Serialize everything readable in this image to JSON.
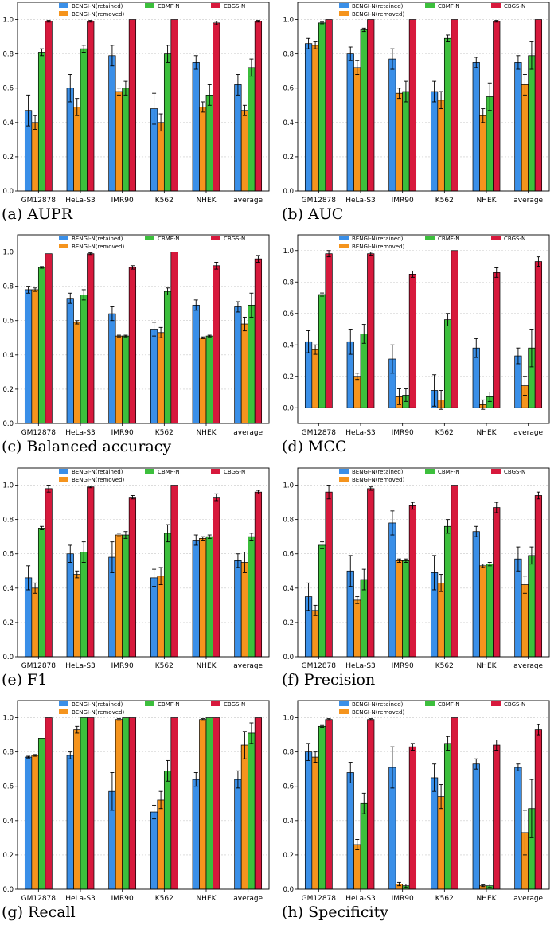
{
  "colors": {
    "BENGI-N(retained)": "#3a8fe8",
    "BENGI-N(removed)": "#f5941d",
    "CBMF-N": "#3cbf3c",
    "CBGS-N": "#d7193c"
  },
  "legend_labels": [
    "BENGI-N(retained)",
    "BENGI-N(removed)",
    "CBMF-N",
    "CBGS-N"
  ],
  "chart_data": [
    {
      "type": "bar",
      "panel": "(a)",
      "title": "AUPR",
      "caption": "(a) AUPR",
      "categories": [
        "GM12878",
        "HeLa-S3",
        "IMR90",
        "K562",
        "NHEK",
        "average"
      ],
      "ylim": [
        0,
        1.1
      ],
      "yticks": [
        "0.0",
        "0.2",
        "0.4",
        "0.6",
        "0.8",
        "1.0"
      ],
      "series": [
        {
          "name": "BENGI-N(retained)",
          "values": [
            0.47,
            0.6,
            0.79,
            0.48,
            0.75,
            0.62
          ],
          "errors": [
            0.09,
            0.08,
            0.06,
            0.09,
            0.04,
            0.06
          ]
        },
        {
          "name": "BENGI-N(removed)",
          "values": [
            0.4,
            0.49,
            0.58,
            0.4,
            0.49,
            0.47
          ],
          "errors": [
            0.04,
            0.05,
            0.02,
            0.05,
            0.03,
            0.03
          ]
        },
        {
          "name": "CBMF-N",
          "values": [
            0.81,
            0.83,
            0.6,
            0.8,
            0.56,
            0.72
          ],
          "errors": [
            0.02,
            0.02,
            0.04,
            0.05,
            0.06,
            0.05
          ]
        },
        {
          "name": "CBGS-N",
          "values": [
            0.99,
            0.99,
            1.0,
            1.0,
            0.98,
            0.99
          ],
          "errors": [
            0.005,
            0.005,
            0.0,
            0.0,
            0.01,
            0.005
          ]
        }
      ]
    },
    {
      "type": "bar",
      "panel": "(b)",
      "title": "AUC",
      "caption": "(b) AUC",
      "categories": [
        "GM12878",
        "HeLa-S3",
        "IMR90",
        "K562",
        "NHEK",
        "average"
      ],
      "ylim": [
        0,
        1.1
      ],
      "yticks": [
        "0.0",
        "0.2",
        "0.4",
        "0.6",
        "0.8",
        "1.0"
      ],
      "series": [
        {
          "name": "BENGI-N(retained)",
          "values": [
            0.86,
            0.8,
            0.77,
            0.58,
            0.75,
            0.75
          ],
          "errors": [
            0.03,
            0.04,
            0.06,
            0.06,
            0.03,
            0.04
          ]
        },
        {
          "name": "BENGI-N(removed)",
          "values": [
            0.85,
            0.72,
            0.57,
            0.53,
            0.44,
            0.62
          ],
          "errors": [
            0.02,
            0.04,
            0.03,
            0.05,
            0.04,
            0.06
          ]
        },
        {
          "name": "CBMF-N",
          "values": [
            0.98,
            0.94,
            0.58,
            0.89,
            0.55,
            0.79
          ],
          "errors": [
            0.005,
            0.01,
            0.06,
            0.02,
            0.08,
            0.08
          ]
        },
        {
          "name": "CBGS-N",
          "values": [
            1.0,
            1.0,
            1.0,
            1.0,
            0.99,
            1.0
          ],
          "errors": [
            0.0,
            0.0,
            0.0,
            0.0,
            0.005,
            0.0
          ]
        }
      ]
    },
    {
      "type": "bar",
      "panel": "(c)",
      "title": "Balanced accuracy",
      "caption": "(c) Balanced accuracy",
      "categories": [
        "GM12878",
        "HeLa-S3",
        "IMR90",
        "K562",
        "NHEK",
        "average"
      ],
      "ylim": [
        0,
        1.1
      ],
      "yticks": [
        "0.0",
        "0.2",
        "0.4",
        "0.6",
        "0.8",
        "1.0"
      ],
      "series": [
        {
          "name": "BENGI-N(retained)",
          "values": [
            0.78,
            0.73,
            0.64,
            0.55,
            0.69,
            0.68
          ],
          "errors": [
            0.02,
            0.03,
            0.04,
            0.04,
            0.03,
            0.03
          ]
        },
        {
          "name": "BENGI-N(removed)",
          "values": [
            0.78,
            0.59,
            0.51,
            0.53,
            0.5,
            0.58
          ],
          "errors": [
            0.01,
            0.01,
            0.005,
            0.03,
            0.005,
            0.04
          ]
        },
        {
          "name": "CBMF-N",
          "values": [
            0.91,
            0.75,
            0.51,
            0.77,
            0.51,
            0.69
          ],
          "errors": [
            0.005,
            0.03,
            0.005,
            0.02,
            0.005,
            0.07
          ]
        },
        {
          "name": "CBGS-N",
          "values": [
            0.99,
            0.99,
            0.91,
            1.0,
            0.92,
            0.96
          ],
          "errors": [
            0.0,
            0.005,
            0.01,
            0.0,
            0.02,
            0.02
          ]
        }
      ]
    },
    {
      "type": "bar",
      "panel": "(d)",
      "title": "MCC",
      "caption": "(d) MCC",
      "categories": [
        "GM12878",
        "HeLa-S3",
        "IMR90",
        "K562",
        "NHEK",
        "average"
      ],
      "ylim": [
        -0.1,
        1.1
      ],
      "yticks": [
        "0.0",
        "0.2",
        "0.4",
        "0.6",
        "0.8",
        "1.0"
      ],
      "series": [
        {
          "name": "BENGI-N(retained)",
          "values": [
            0.42,
            0.42,
            0.31,
            0.11,
            0.38,
            0.33
          ],
          "errors": [
            0.07,
            0.08,
            0.09,
            0.1,
            0.06,
            0.05
          ]
        },
        {
          "name": "BENGI-N(removed)",
          "values": [
            0.37,
            0.2,
            0.07,
            0.05,
            0.02,
            0.14
          ],
          "errors": [
            0.03,
            0.02,
            0.05,
            0.06,
            0.03,
            0.06
          ]
        },
        {
          "name": "CBMF-N",
          "values": [
            0.72,
            0.47,
            0.08,
            0.56,
            0.07,
            0.38
          ],
          "errors": [
            0.01,
            0.06,
            0.04,
            0.04,
            0.03,
            0.12
          ]
        },
        {
          "name": "CBGS-N",
          "values": [
            0.98,
            0.98,
            0.85,
            1.0,
            0.86,
            0.93
          ],
          "errors": [
            0.02,
            0.01,
            0.02,
            0.0,
            0.03,
            0.03
          ]
        }
      ]
    },
    {
      "type": "bar",
      "panel": "(e)",
      "title": "F1",
      "caption": "(e) F1",
      "categories": [
        "GM12878",
        "HeLa-S3",
        "IMR90",
        "K562",
        "NHEK",
        "average"
      ],
      "ylim": [
        0,
        1.1
      ],
      "yticks": [
        "0.0",
        "0.2",
        "0.4",
        "0.6",
        "0.8",
        "1.0"
      ],
      "series": [
        {
          "name": "BENGI-N(retained)",
          "values": [
            0.46,
            0.6,
            0.58,
            0.46,
            0.68,
            0.56
          ],
          "errors": [
            0.07,
            0.05,
            0.09,
            0.05,
            0.03,
            0.04
          ]
        },
        {
          "name": "BENGI-N(removed)",
          "values": [
            0.4,
            0.48,
            0.71,
            0.47,
            0.69,
            0.55
          ],
          "errors": [
            0.03,
            0.02,
            0.01,
            0.05,
            0.01,
            0.06
          ]
        },
        {
          "name": "CBMF-N",
          "values": [
            0.75,
            0.61,
            0.71,
            0.72,
            0.7,
            0.7
          ],
          "errors": [
            0.01,
            0.06,
            0.02,
            0.05,
            0.01,
            0.02
          ]
        },
        {
          "name": "CBGS-N",
          "values": [
            0.98,
            0.99,
            0.93,
            1.0,
            0.93,
            0.96
          ],
          "errors": [
            0.02,
            0.005,
            0.01,
            0.0,
            0.02,
            0.01
          ]
        }
      ]
    },
    {
      "type": "bar",
      "panel": "(f)",
      "title": "Precision",
      "caption": "(f) Precision",
      "categories": [
        "GM12878",
        "HeLa-S3",
        "IMR90",
        "K562",
        "NHEK",
        "average"
      ],
      "ylim": [
        0,
        1.1
      ],
      "yticks": [
        "0.0",
        "0.2",
        "0.4",
        "0.6",
        "0.8",
        "1.0"
      ],
      "series": [
        {
          "name": "BENGI-N(retained)",
          "values": [
            0.35,
            0.5,
            0.78,
            0.49,
            0.73,
            0.57
          ],
          "errors": [
            0.08,
            0.09,
            0.07,
            0.1,
            0.03,
            0.07
          ]
        },
        {
          "name": "BENGI-N(removed)",
          "values": [
            0.27,
            0.33,
            0.56,
            0.43,
            0.53,
            0.42
          ],
          "errors": [
            0.03,
            0.02,
            0.01,
            0.05,
            0.01,
            0.05
          ]
        },
        {
          "name": "CBMF-N",
          "values": [
            0.65,
            0.45,
            0.56,
            0.76,
            0.54,
            0.59
          ],
          "errors": [
            0.02,
            0.06,
            0.01,
            0.04,
            0.01,
            0.05
          ]
        },
        {
          "name": "CBGS-N",
          "values": [
            0.96,
            0.98,
            0.88,
            1.0,
            0.87,
            0.94
          ],
          "errors": [
            0.04,
            0.01,
            0.02,
            0.0,
            0.03,
            0.02
          ]
        }
      ]
    },
    {
      "type": "bar",
      "panel": "(g)",
      "title": "Recall",
      "caption": "(g) Recall",
      "categories": [
        "GM12878",
        "HeLa-S3",
        "IMR90",
        "K562",
        "NHEK",
        "average"
      ],
      "ylim": [
        0,
        1.1
      ],
      "yticks": [
        "0.0",
        "0.2",
        "0.4",
        "0.6",
        "0.8",
        "1.0"
      ],
      "series": [
        {
          "name": "BENGI-N(retained)",
          "values": [
            0.77,
            0.78,
            0.57,
            0.45,
            0.64,
            0.64
          ],
          "errors": [
            0.005,
            0.02,
            0.11,
            0.04,
            0.04,
            0.05
          ]
        },
        {
          "name": "BENGI-N(removed)",
          "values": [
            0.78,
            0.93,
            0.99,
            0.52,
            0.99,
            0.84
          ],
          "errors": [
            0.005,
            0.02,
            0.005,
            0.05,
            0.005,
            0.08
          ]
        },
        {
          "name": "CBMF-N",
          "values": [
            0.88,
            1.0,
            1.0,
            0.69,
            1.0,
            0.91
          ],
          "errors": [
            0.0,
            0.0,
            0.0,
            0.06,
            0.0,
            0.06
          ]
        },
        {
          "name": "CBGS-N",
          "values": [
            1.0,
            1.0,
            1.0,
            1.0,
            1.0,
            1.0
          ],
          "errors": [
            0.0,
            0.0,
            0.0,
            0.0,
            0.0,
            0.0
          ]
        }
      ]
    },
    {
      "type": "bar",
      "panel": "(h)",
      "title": "Specificity",
      "caption": "(h) Specificity",
      "categories": [
        "GM12878",
        "HeLa-S3",
        "IMR90",
        "K562",
        "NHEK",
        "average"
      ],
      "ylim": [
        0,
        1.1
      ],
      "yticks": [
        "0.0",
        "0.2",
        "0.4",
        "0.6",
        "0.8",
        "1.0"
      ],
      "series": [
        {
          "name": "BENGI-N(retained)",
          "values": [
            0.8,
            0.68,
            0.71,
            0.65,
            0.73,
            0.71
          ],
          "errors": [
            0.05,
            0.06,
            0.12,
            0.08,
            0.03,
            0.02
          ]
        },
        {
          "name": "BENGI-N(removed)",
          "values": [
            0.77,
            0.26,
            0.03,
            0.54,
            0.02,
            0.33
          ],
          "errors": [
            0.03,
            0.03,
            0.01,
            0.07,
            0.005,
            0.13
          ]
        },
        {
          "name": "CBMF-N",
          "values": [
            0.95,
            0.5,
            0.02,
            0.85,
            0.02,
            0.47
          ],
          "errors": [
            0.005,
            0.06,
            0.01,
            0.04,
            0.01,
            0.17
          ]
        },
        {
          "name": "CBGS-N",
          "values": [
            0.99,
            0.99,
            0.83,
            1.0,
            0.84,
            0.93
          ],
          "errors": [
            0.005,
            0.005,
            0.02,
            0.0,
            0.03,
            0.03
          ]
        }
      ]
    }
  ]
}
